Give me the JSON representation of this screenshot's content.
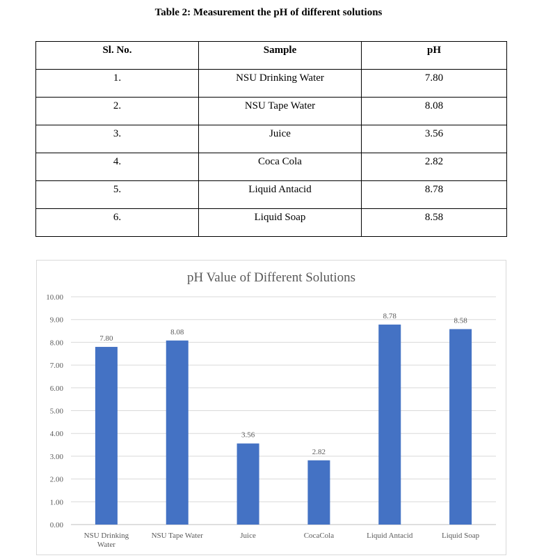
{
  "caption": "Table 2: Measurement the pH of different solutions",
  "table": {
    "headers": [
      "Sl. No.",
      "Sample",
      "pH"
    ],
    "rows": [
      [
        "1.",
        "NSU Drinking Water",
        "7.80"
      ],
      [
        "2.",
        "NSU Tape Water",
        "8.08"
      ],
      [
        "3.",
        "Juice",
        "3.56"
      ],
      [
        "4.",
        "Coca Cola",
        "2.82"
      ],
      [
        "5.",
        "Liquid Antacid",
        "8.78"
      ],
      [
        "6.",
        "Liquid Soap",
        "8.58"
      ]
    ]
  },
  "chart_data": {
    "type": "bar",
    "title": "pH Value of Different Solutions",
    "categories": [
      [
        "NSU Drinking",
        "Water"
      ],
      [
        "NSU Tape Water"
      ],
      [
        "Juice"
      ],
      [
        "CocaCola"
      ],
      [
        "Liquid Antacid"
      ],
      [
        "Liquid Soap"
      ]
    ],
    "values": [
      7.8,
      8.08,
      3.56,
      2.82,
      8.78,
      8.58
    ],
    "data_labels": [
      "7.80",
      "8.08",
      "3.56",
      "2.82",
      "8.78",
      "8.58"
    ],
    "ylim": [
      0,
      10
    ],
    "yticks": [
      "0.00",
      "1.00",
      "2.00",
      "3.00",
      "4.00",
      "5.00",
      "6.00",
      "7.00",
      "8.00",
      "9.00",
      "10.00"
    ],
    "xlabel": "",
    "ylabel": "",
    "grid": true,
    "bar_color": "#4472c4",
    "grid_color": "#d9d9d9",
    "text_color": "#595959"
  }
}
